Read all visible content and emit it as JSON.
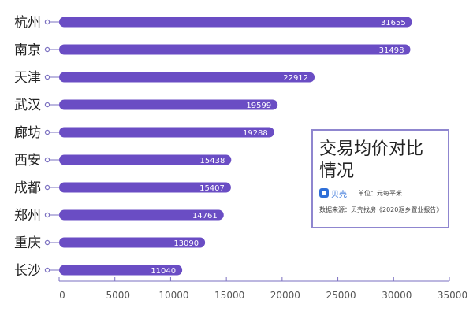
{
  "chart_data": {
    "type": "bar",
    "orientation": "horizontal",
    "categories": [
      "杭州",
      "南京",
      "天津",
      "武汉",
      "廊坊",
      "西安",
      "成都",
      "郑州",
      "重庆",
      "长沙"
    ],
    "values": [
      31655,
      31498,
      22912,
      19599,
      19288,
      15438,
      15407,
      14761,
      13090,
      11040
    ],
    "xticks": [
      0,
      5000,
      10000,
      15000,
      20000,
      25000,
      30000,
      35000
    ],
    "xlim": [
      0,
      35000
    ],
    "bar_color": "#6a4dc4",
    "grid": false,
    "title": "交易均价对比情况"
  },
  "legend": {
    "title": "交易均价对比情况",
    "brand": "贝壳",
    "unit": "单位：元每平米",
    "source": "数据来源：贝壳找房《2020返乡置业报告》"
  },
  "colors": {
    "bar": "#6a4dc4",
    "axis": "#7a6fc0",
    "legend_border": "#8f86cf",
    "brand": "#2f6fd8"
  }
}
